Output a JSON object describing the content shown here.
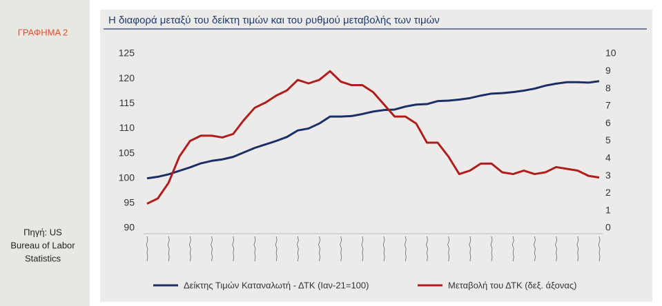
{
  "sidebar": {
    "label": "ΓΡΑΦΗΜΑ 2",
    "source": [
      "Πηγή: US",
      "Bureau of Labor",
      "Statistics"
    ]
  },
  "chart_data": {
    "type": "line",
    "title": "Η διαφορά μεταξύ του δείκτη τιμών και του ρυθμού μεταβολής των τιμών",
    "categories": [
      null,
      null,
      null,
      null,
      null,
      null,
      null,
      null,
      null,
      null,
      null,
      null,
      null,
      null,
      null,
      null,
      null,
      null,
      null,
      null,
      null,
      null,
      null,
      null,
      null,
      null,
      null,
      null,
      null,
      null,
      null,
      null,
      null,
      null,
      null,
      null,
      null,
      null,
      null,
      null,
      null,
      null,
      null
    ],
    "series": [
      {
        "name": "Δείκτης Τιμών Καταναλωτή - ΔΤΚ (Ιαν-21=100)",
        "color": "#1a2f66",
        "values": [
          100,
          100.3,
          100.8,
          101.5,
          102.2,
          103.0,
          103.5,
          103.8,
          104.3,
          105.2,
          106.1,
          106.8,
          107.5,
          108.3,
          109.6,
          110.0,
          111.0,
          112.4,
          112.4,
          112.5,
          112.9,
          113.4,
          113.7,
          113.8,
          114.4,
          114.8,
          114.9,
          115.5,
          115.6,
          115.8,
          116.1,
          116.6,
          117.0,
          117.1,
          117.3,
          117.6,
          118.0,
          118.6,
          119.0,
          119.3,
          119.3,
          119.2,
          119.5
        ]
      },
      {
        "name": "Μεταβολή του ΔΤΚ (δεξ. άξονας)",
        "color": "#b01c1c",
        "axis": "y2",
        "values": [
          1.4,
          1.7,
          2.6,
          4.1,
          5.0,
          5.3,
          5.3,
          5.2,
          5.4,
          6.2,
          6.9,
          7.2,
          7.6,
          7.9,
          8.5,
          8.3,
          8.5,
          9.0,
          8.4,
          8.2,
          8.2,
          7.8,
          7.1,
          6.4,
          6.4,
          6.0,
          4.9,
          4.9,
          4.1,
          3.1,
          3.3,
          3.7,
          3.7,
          3.2,
          3.1,
          3.3,
          3.1,
          3.2,
          3.5,
          3.4,
          3.3,
          3.0,
          2.9
        ]
      }
    ],
    "ylim": [
      90,
      125
    ],
    "yticks": [
      90,
      95,
      100,
      105,
      110,
      115,
      120,
      125
    ],
    "y2lim": [
      0,
      10
    ],
    "y2ticks": [
      0,
      1,
      2,
      3,
      4,
      5,
      6,
      7,
      8,
      9,
      10
    ],
    "legend": "bottom"
  }
}
